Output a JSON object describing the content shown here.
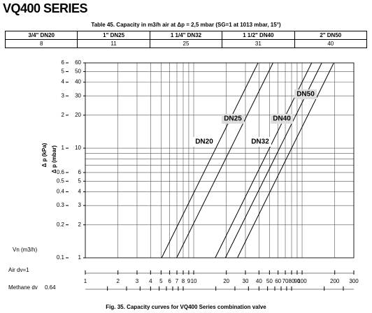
{
  "header": {
    "title": "VQ400 SERIES"
  },
  "table": {
    "caption": "Table 45. Capacity in m3/h air at Δp = 2,5 mbar (SG=1 at 1013 mbar, 15°)",
    "columns": [
      "3/4\" DN20",
      "1\" DN25",
      "1 1/4\" DN32",
      "1 1/2\" DN40",
      "2\" DN50"
    ],
    "rows": [
      [
        8,
        11,
        25,
        31,
        40
      ]
    ]
  },
  "chart_data": {
    "type": "line",
    "log_x": true,
    "log_y": true,
    "grid": true,
    "color": "#000000",
    "y_label": "Δ p (mbar)",
    "y2_label": "Δ p (kPa)",
    "x_label": "Vn (m3/h)",
    "x_axis_label": "Air  dv=1",
    "methane_label": "Methane dv",
    "methane_density": 0.64,
    "caption": "Fig. 35. Capacity curves for VQ400 Series combination valve",
    "xlim": [
      1,
      300
    ],
    "ylim": [
      1,
      60
    ],
    "y2lim": [
      0.1,
      6
    ],
    "xticks": [
      1,
      2,
      3,
      4,
      5,
      6,
      7,
      8,
      9,
      10,
      20,
      30,
      40,
      50,
      60,
      70,
      80,
      90,
      100,
      200,
      300
    ],
    "yticks": [
      1,
      2,
      3,
      4,
      5,
      6,
      10,
      20,
      30,
      40,
      50,
      60
    ],
    "y2ticks": [
      0.1,
      0.2,
      0.3,
      0.4,
      0.5,
      0.6,
      1,
      2,
      3,
      4,
      5,
      6
    ],
    "ygrid": [
      1,
      2,
      3,
      4,
      5,
      6,
      7,
      8,
      9,
      10,
      20,
      30,
      40,
      50,
      60
    ],
    "series": [
      {
        "name": "DN20",
        "x": [
          5.06,
          39.2
        ],
        "values": [
          1,
          60
        ]
      },
      {
        "name": "DN25",
        "x": [
          6.96,
          53.9
        ],
        "values": [
          1,
          60
        ]
      },
      {
        "name": "DN32",
        "x": [
          15.8,
          122.5
        ],
        "values": [
          1,
          60
        ]
      },
      {
        "name": "DN40",
        "x": [
          19.6,
          151.8
        ],
        "values": [
          1,
          60
        ]
      },
      {
        "name": "DN50",
        "x": [
          25.3,
          196
        ],
        "values": [
          1,
          60
        ]
      }
    ]
  }
}
